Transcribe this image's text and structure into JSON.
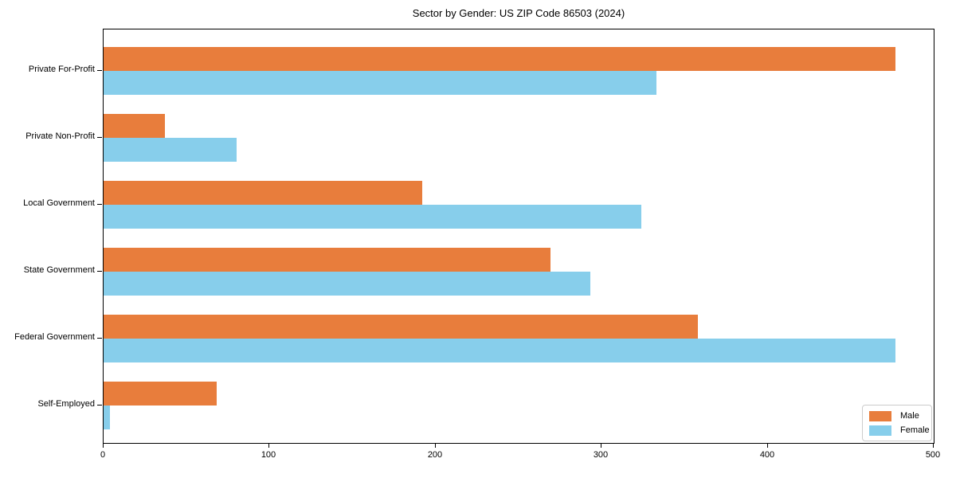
{
  "figure": {
    "background_color": "#ffffff",
    "text_color": "#000000"
  },
  "chart_data": {
    "type": "bar",
    "orientation": "horizontal",
    "title": "Sector by Gender: US ZIP Code 86503 (2024)",
    "categories": [
      "Private For-Profit",
      "Private Non-Profit",
      "Local Government",
      "State Government",
      "Federal Government",
      "Self-Employed"
    ],
    "series": [
      {
        "name": "Male",
        "color": "#E87D3C",
        "values": [
          477,
          37,
          192,
          269,
          358,
          68
        ]
      },
      {
        "name": "Female",
        "color": "#87CEEB",
        "values": [
          333,
          80,
          324,
          293,
          477,
          4
        ]
      }
    ],
    "xlabel": "",
    "ylabel": "",
    "xlim": [
      0,
      500
    ],
    "x_ticks": [
      0,
      100,
      200,
      300,
      400,
      500
    ],
    "grid": false,
    "legend": {
      "position": "lower right",
      "entries": [
        "Male",
        "Female"
      ]
    }
  }
}
